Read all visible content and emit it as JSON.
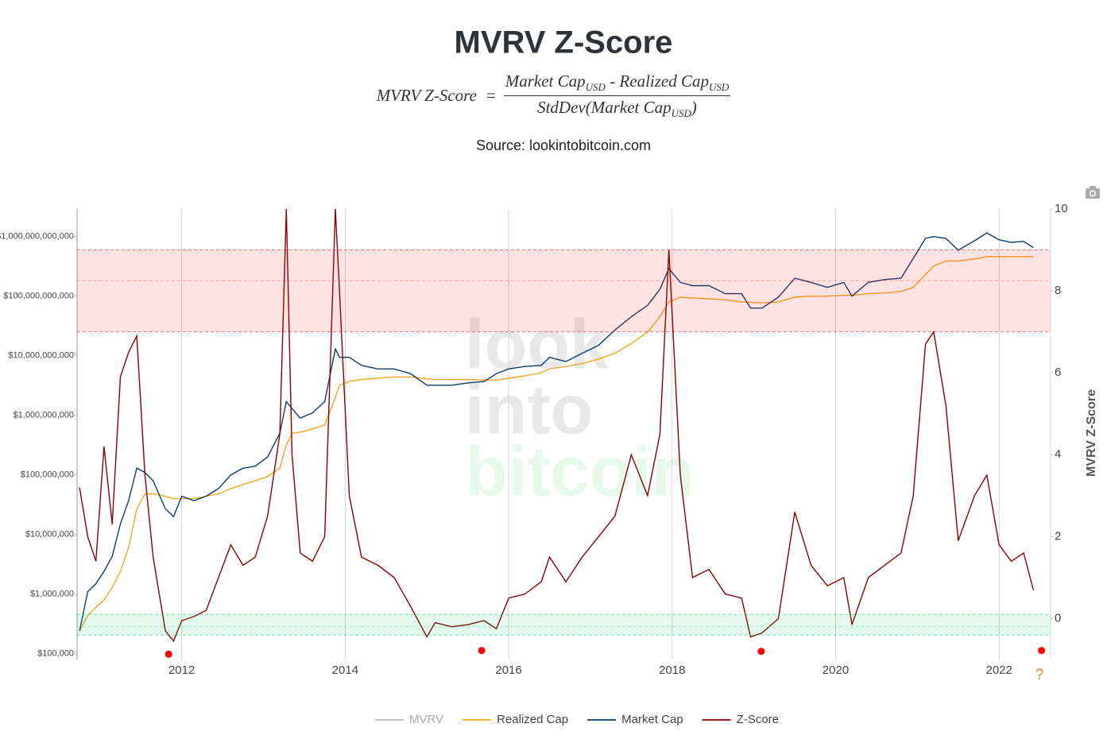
{
  "chart_data": {
    "type": "line",
    "title": "MVRV Z-Score",
    "formula": {
      "lhs": "MVRV Z-Score",
      "equals": "=",
      "numerator": [
        "Market Cap",
        "USD",
        " - Realized Cap",
        "USD"
      ],
      "denominator": [
        "StdDev(Market Cap",
        "USD",
        ")"
      ]
    },
    "subtitle": "Source: lookintobitcoin.com",
    "watermark": [
      "look",
      "into",
      "bitcoin"
    ],
    "y2_label": "MVRV Z-Score",
    "help_text": "?",
    "xlim": [
      2010.72,
      2022.63
    ],
    "xticks": [
      2012,
      2014,
      2016,
      2018,
      2020,
      2022
    ],
    "ylog": true,
    "ylim": [
      80000,
      2900000000000
    ],
    "yticks": [
      {
        "value": 100000,
        "label": "$100,000"
      },
      {
        "value": 1000000,
        "label": "$1,000,000"
      },
      {
        "value": 10000000,
        "label": "$10,000,000"
      },
      {
        "value": 100000000,
        "label": "$100,000,000"
      },
      {
        "value": 1000000000,
        "label": "$1,000,000,000"
      },
      {
        "value": 10000000000,
        "label": "$10,000,000,000"
      },
      {
        "value": 100000000000,
        "label": "$100,000,000,000"
      },
      {
        "value": 1000000000000,
        "label": "$1,000,000,000,000"
      }
    ],
    "y2lim": [
      -1,
      10
    ],
    "y2ticks": [
      0,
      2,
      4,
      6,
      8,
      10
    ],
    "grid": true,
    "bands": [
      {
        "from": 7,
        "to": 9,
        "mid": 8.25,
        "color": "#ff0000"
      },
      {
        "from": -0.4,
        "to": 0.1,
        "mid": -0.2,
        "color": "#00cc66"
      }
    ],
    "x": [
      2010.75,
      2010.85,
      2010.95,
      2011.05,
      2011.15,
      2011.25,
      2011.35,
      2011.45,
      2011.55,
      2011.65,
      2011.8,
      2011.9,
      2012.0,
      2012.15,
      2012.3,
      2012.45,
      2012.6,
      2012.75,
      2012.9,
      2013.05,
      2013.2,
      2013.28,
      2013.35,
      2013.45,
      2013.6,
      2013.75,
      2013.88,
      2013.93,
      2014.05,
      2014.2,
      2014.4,
      2014.6,
      2014.8,
      2015.0,
      2015.1,
      2015.3,
      2015.5,
      2015.7,
      2015.85,
      2016.0,
      2016.2,
      2016.4,
      2016.5,
      2016.7,
      2016.9,
      2017.1,
      2017.3,
      2017.5,
      2017.7,
      2017.85,
      2017.96,
      2018.1,
      2018.25,
      2018.45,
      2018.65,
      2018.85,
      2018.96,
      2019.1,
      2019.3,
      2019.5,
      2019.7,
      2019.9,
      2020.1,
      2020.2,
      2020.4,
      2020.6,
      2020.8,
      2020.95,
      2021.1,
      2021.2,
      2021.35,
      2021.5,
      2021.7,
      2021.85,
      2022.0,
      2022.15,
      2022.3,
      2022.42
    ],
    "series": [
      {
        "name": "MVRV",
        "color": "#888888",
        "visible": false
      },
      {
        "name": "Realized Cap",
        "color": "#f5a623",
        "visible": true,
        "values": [
          240000.0,
          440000.0,
          600000.0,
          800000.0,
          1300000.0,
          2400000.0,
          6000000.0,
          27000000.0,
          48000000.0,
          48000000.0,
          44000000.0,
          40000000.0,
          40000000.0,
          40000000.0,
          44000000.0,
          48000000.0,
          59000000.0,
          69000000.0,
          80000000.0,
          94000000.0,
          130000000.0,
          320000000.0,
          500000000.0,
          520000000.0,
          590000000.0,
          690000000.0,
          2000000000.0,
          3200000000.0,
          3700000000.0,
          4000000000.0,
          4200000000.0,
          4400000000.0,
          4400000000.0,
          4100000000.0,
          4000000000.0,
          4000000000.0,
          4000000000.0,
          3900000000.0,
          3900000000.0,
          4200000000.0,
          4600000000.0,
          5200000000.0,
          6000000000.0,
          6600000000.0,
          7400000000.0,
          8800000000.0,
          11000000000.0,
          16000000000.0,
          25000000000.0,
          45000000000.0,
          80000000000.0,
          96000000000.0,
          93000000000.0,
          90000000000.0,
          87000000000.0,
          80000000000.0,
          79000000000.0,
          77000000000.0,
          80000000000.0,
          96000000000.0,
          100000000000.0,
          100000000000.0,
          103000000000.0,
          103000000000.0,
          110000000000.0,
          113000000000.0,
          120000000000.0,
          140000000000.0,
          230000000000.0,
          320000000000.0,
          390000000000.0,
          390000000000.0,
          420000000000.0,
          460000000000.0,
          460000000000.0,
          460000000000.0,
          460000000000.0,
          460000000000.0
        ]
      },
      {
        "name": "Market Cap",
        "color": "#0d3d6b",
        "visible": true,
        "values": [
          240000.0,
          1100000.0,
          1500000.0,
          2400000.0,
          4300000.0,
          15000000.0,
          37000000.0,
          130000000.0,
          110000000.0,
          80000000.0,
          27000000.0,
          20000000.0,
          44000000.0,
          37000000.0,
          44000000.0,
          59000000.0,
          100000000.0,
          130000000.0,
          140000000.0,
          200000000.0,
          500000000.0,
          1700000000.0,
          1300000000.0,
          900000000.0,
          1100000000.0,
          1700000000.0,
          13000000000.0,
          9400000000.0,
          9400000000.0,
          6900000000.0,
          6000000000.0,
          6000000000.0,
          5000000000.0,
          3200000000.0,
          3200000000.0,
          3200000000.0,
          3500000000.0,
          3700000000.0,
          5000000000.0,
          6000000000.0,
          6600000000.0,
          6900000000.0,
          9400000000.0,
          8000000000.0,
          11000000000.0,
          15000000000.0,
          27000000000.0,
          45000000000.0,
          70000000000.0,
          130000000000.0,
          290000000000.0,
          170000000000.0,
          150000000000.0,
          150000000000.0,
          110000000000.0,
          110000000000.0,
          63000000000.0,
          63000000000.0,
          96000000000.0,
          200000000000.0,
          170000000000.0,
          140000000000.0,
          170000000000.0,
          100000000000.0,
          170000000000.0,
          190000000000.0,
          200000000000.0,
          430000000000.0,
          930000000000.0,
          1000000000000.0,
          930000000000.0,
          590000000000.0,
          850000000000.0,
          1150000000000.0,
          880000000000.0,
          800000000000.0,
          830000000000.0,
          650000000000.0
        ]
      },
      {
        "name": "Z-Score",
        "color": "#8b0000",
        "visible": true,
        "axis": "y2",
        "values": [
          3.2,
          2.0,
          1.4,
          4.2,
          2.3,
          5.9,
          6.5,
          6.9,
          3.5,
          1.5,
          -0.3,
          -0.55,
          -0.05,
          0.05,
          0.2,
          1.0,
          1.8,
          1.3,
          1.5,
          2.5,
          4.5,
          10,
          4.0,
          1.6,
          1.4,
          2.0,
          10,
          8.0,
          3.0,
          1.5,
          1.3,
          1.0,
          0.3,
          -0.45,
          -0.1,
          -0.2,
          -0.15,
          -0.05,
          -0.25,
          0.5,
          0.6,
          0.9,
          1.5,
          0.9,
          1.5,
          2.0,
          2.5,
          4.0,
          3.0,
          4.5,
          9.0,
          3.5,
          1.0,
          1.2,
          0.6,
          0.5,
          -0.45,
          -0.35,
          0.0,
          2.6,
          1.3,
          0.8,
          1.0,
          -0.15,
          1.0,
          1.3,
          1.6,
          3.0,
          6.7,
          7.0,
          5.2,
          1.9,
          3.0,
          3.5,
          1.8,
          1.4,
          1.6,
          0.7
        ]
      }
    ],
    "markers": {
      "color": "#ff0000",
      "axis": "y2",
      "x": [
        2011.84,
        2015.67,
        2019.09,
        2022.52
      ],
      "values": [
        -0.87,
        -0.78,
        -0.8,
        -0.78
      ]
    }
  }
}
